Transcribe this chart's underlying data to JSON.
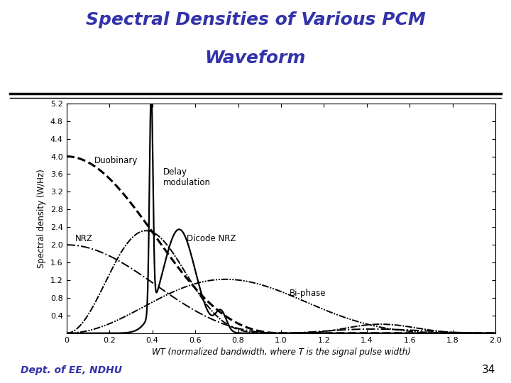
{
  "title_line1": "Spectral Densities of Various PCM",
  "title_line2": "Waveform",
  "title_color": "#3333AA",
  "title_fontsize": 18,
  "xlabel": "WT (normalized bandwidth, where T is the signal pulse width)",
  "ylabel": "Spectral density (W/Hz)",
  "xlim": [
    0,
    2.0
  ],
  "ylim": [
    0,
    5.2
  ],
  "xticks": [
    0,
    0.2,
    0.4,
    0.6,
    0.8,
    1.0,
    1.2,
    1.4,
    1.6,
    1.8,
    2.0
  ],
  "yticks": [
    0.4,
    0.8,
    1.2,
    1.6,
    2.0,
    2.4,
    2.8,
    3.2,
    3.6,
    4.0,
    4.4,
    4.8,
    5.2
  ],
  "footer_text": "Dept. of EE, NDHU",
  "footer_color": "#3333AA",
  "page_number": "34",
  "background_color": "#ffffff"
}
